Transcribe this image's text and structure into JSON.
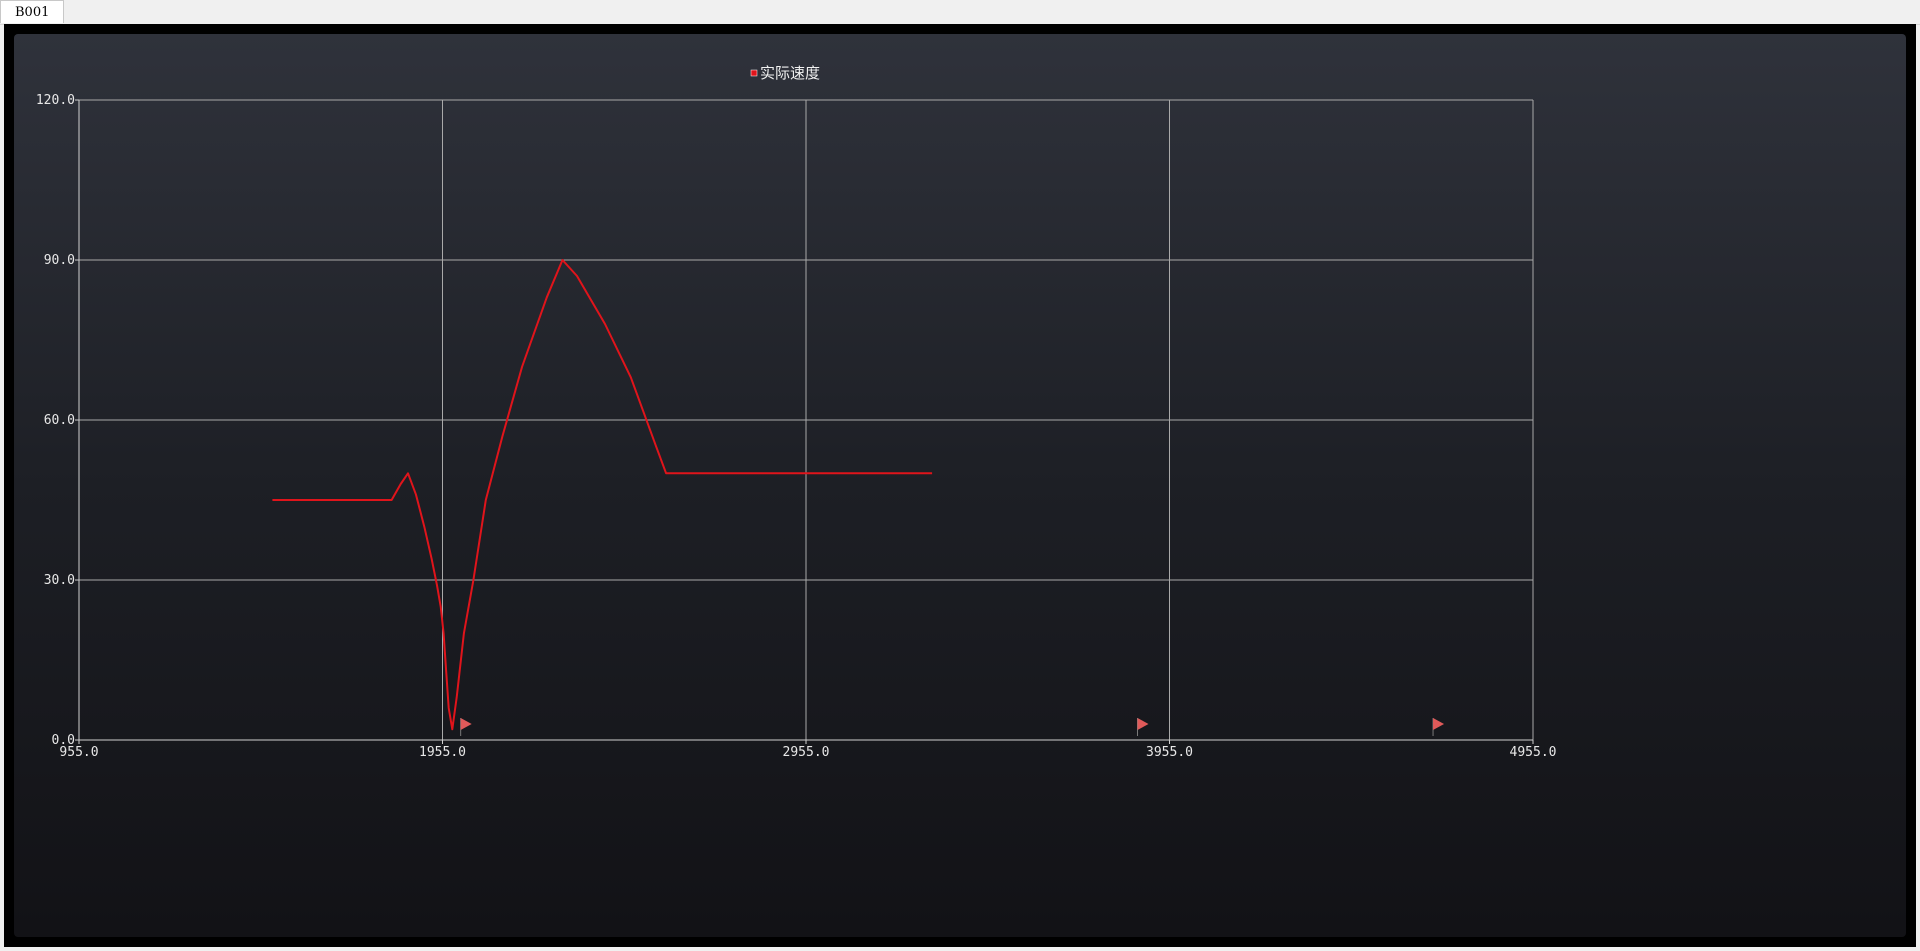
{
  "window": {
    "tab_label": "B001"
  },
  "colors": {
    "series": "#e0141b",
    "flag": "#e05a5a",
    "grid": "#a9a9a9",
    "axis": "#d0d0d0"
  },
  "chart_data": {
    "type": "line",
    "title": "",
    "xlabel": "",
    "ylabel": "",
    "xlim": [
      955.0,
      4955.0
    ],
    "ylim": [
      0.0,
      120.0
    ],
    "grid": true,
    "legend_position": "top-center",
    "x_ticks": [
      "955.0",
      "1955.0",
      "2955.0",
      "3955.0",
      "4955.0"
    ],
    "y_ticks": [
      "0.0",
      "30.0",
      "60.0",
      "90.0",
      "120.0"
    ],
    "x_tick_values": [
      955,
      1955,
      2955,
      3955,
      4955
    ],
    "y_tick_values": [
      0,
      30,
      60,
      90,
      120
    ],
    "series": [
      {
        "name": "实际速度",
        "x": [
          1487,
          1610,
          1815,
          1840,
          1860,
          1882,
          1905,
          1925,
          1940,
          1950,
          1958,
          1963,
          1966,
          1972,
          1982,
          1994,
          2014,
          2040,
          2074,
          2120,
          2174,
          2242,
          2285,
          2325,
          2402,
          2473,
          2543,
          2570,
          2700,
          2840,
          3000,
          3160,
          3270,
          3302
        ],
        "values": [
          45,
          45,
          45,
          48,
          50,
          46,
          40,
          34,
          29,
          25,
          20,
          15,
          12,
          6,
          2,
          8,
          20,
          30,
          45,
          57,
          70,
          83,
          90,
          87,
          78,
          68,
          55,
          50,
          50,
          50,
          50,
          50,
          50,
          50
        ]
      }
    ],
    "markers": [
      {
        "type": "flag",
        "x": 2005,
        "y": 3
      },
      {
        "type": "flag",
        "x": 3867,
        "y": 3
      },
      {
        "type": "flag",
        "x": 4680,
        "y": 3
      }
    ]
  }
}
